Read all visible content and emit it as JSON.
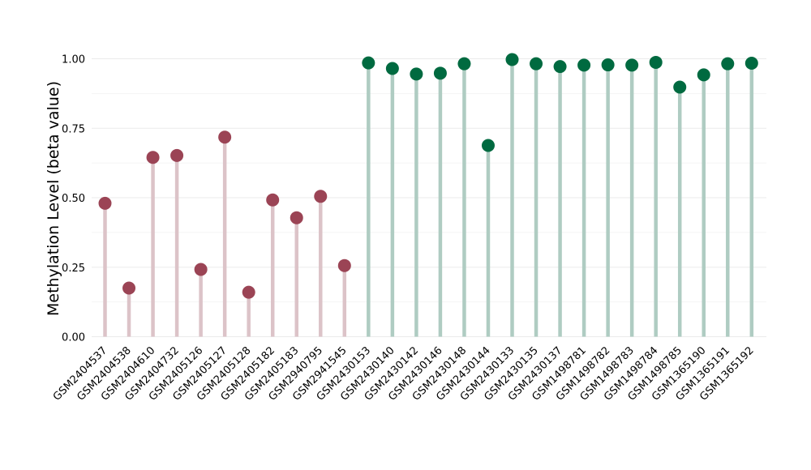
{
  "chart_data": {
    "type": "lollipop",
    "title": "",
    "xlabel": "",
    "ylabel": "Methylation Level (beta value)",
    "ylim": [
      0,
      1
    ],
    "yticks": [
      "0.00",
      "0.25",
      "0.50",
      "0.75",
      "1.00"
    ],
    "ytick_values": [
      0,
      0.25,
      0.5,
      0.75,
      1.0
    ],
    "grid": true,
    "legend": "none",
    "colors": {
      "group1_point": "#9b4455",
      "group1_stem": "#dcc3c8",
      "group2_point": "#006a40",
      "group2_stem": "#afccc2",
      "grid": "#ebebeb"
    },
    "categories": [
      "GSM2404537",
      "GSM2404538",
      "GSM2404610",
      "GSM2404732",
      "GSM2405126",
      "GSM2405127",
      "GSM2405128",
      "GSM2405182",
      "GSM2405183",
      "GSM2940795",
      "GSM2941545",
      "GSM2430153",
      "GSM2430140",
      "GSM2430142",
      "GSM2430146",
      "GSM2430148",
      "GSM2430144",
      "GSM2430133",
      "GSM2430135",
      "GSM2430137",
      "GSM1498781",
      "GSM1498782",
      "GSM1498783",
      "GSM1498784",
      "GSM1498785",
      "GSM1365190",
      "GSM1365191",
      "GSM1365192"
    ],
    "values": [
      0.48,
      0.175,
      0.645,
      0.652,
      0.242,
      0.718,
      0.16,
      0.492,
      0.428,
      0.505,
      0.256,
      0.985,
      0.965,
      0.945,
      0.948,
      0.982,
      0.688,
      0.997,
      0.982,
      0.972,
      0.977,
      0.978,
      0.977,
      0.987,
      0.898,
      0.942,
      0.982,
      0.984
    ],
    "groups": [
      1,
      1,
      1,
      1,
      1,
      1,
      1,
      1,
      1,
      1,
      1,
      2,
      2,
      2,
      2,
      2,
      2,
      2,
      2,
      2,
      2,
      2,
      2,
      2,
      2,
      2,
      2,
      2
    ]
  }
}
